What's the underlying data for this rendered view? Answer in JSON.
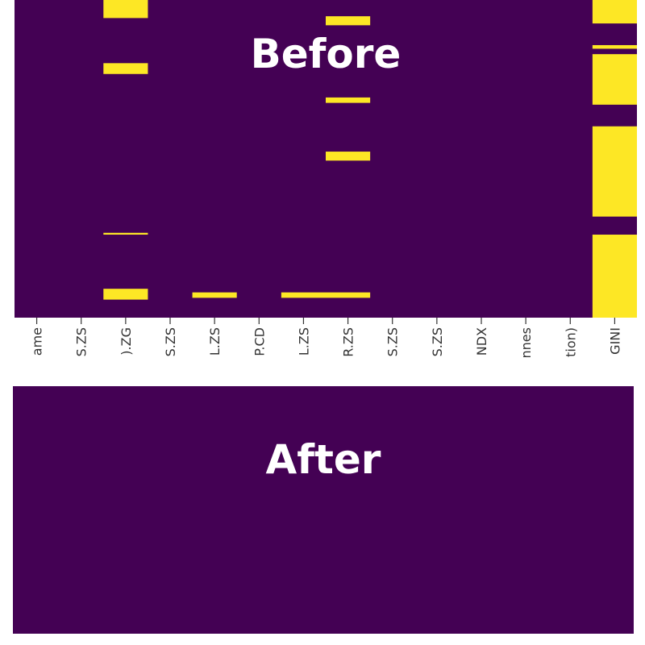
{
  "panels": {
    "before_title": "Before",
    "after_title": "After"
  },
  "colors": {
    "present": "#440154",
    "missing": "#fde725",
    "tick_label": "#333333"
  },
  "chart_data": [
    {
      "type": "heatmap",
      "panel": "Before",
      "description_of_encoding": "Missing-value map: purple = value present, yellow = value missing. Rows are dataset records (0-based index), columns are dataset columns.",
      "n_rows": 176,
      "columns": [
        "ame",
        "S.ZS",
        ").ZG",
        "S.ZS",
        "L.ZS",
        "P.CD",
        "L.ZS",
        "R.ZS",
        "S.ZS",
        "S.ZS",
        "NDX",
        "nnes",
        "tion)",
        "GINI"
      ],
      "missing_row_ranges": [
        {
          "col": 2,
          "rows": [
            [
              0,
              9
            ],
            [
              35,
              40
            ],
            [
              129,
              129
            ],
            [
              160,
              165
            ]
          ]
        },
        {
          "col": 4,
          "rows": [
            [
              162,
              164
            ]
          ]
        },
        {
          "col": 6,
          "rows": [
            [
              162,
              164
            ]
          ]
        },
        {
          "col": 7,
          "rows": [
            [
              9,
              13
            ],
            [
              54,
              56
            ],
            [
              84,
              88
            ],
            [
              162,
              164
            ]
          ]
        },
        {
          "col": 13,
          "rows": [
            [
              0,
              12
            ],
            [
              25,
              26
            ],
            [
              30,
              57
            ],
            [
              70,
              119
            ],
            [
              130,
              175
            ]
          ]
        }
      ],
      "legend": "none"
    },
    {
      "type": "heatmap",
      "panel": "After",
      "description_of_encoding": "All values present (no missing cells).",
      "missing_row_ranges": []
    }
  ]
}
